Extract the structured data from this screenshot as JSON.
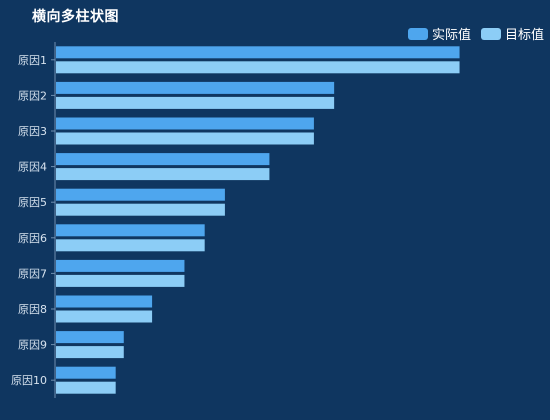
{
  "colors": {
    "background": "#0f3660",
    "series_actual": "#4ea6ee",
    "series_target": "#8ccdf6",
    "axis": "#6f8fb0",
    "tick_label": "#d6e2ee"
  },
  "chart_data": {
    "type": "bar",
    "orientation": "horizontal",
    "title": "横向多柱状图",
    "categories": [
      "原因1",
      "原因2",
      "原因3",
      "原因4",
      "原因5",
      "原因6",
      "原因7",
      "原因8",
      "原因9",
      "原因10"
    ],
    "series": [
      {
        "name": "实际值",
        "color": "#4ea6ee",
        "values": [
          100,
          69,
          64,
          53,
          42,
          37,
          32,
          24,
          17,
          15
        ]
      },
      {
        "name": "目标值",
        "color": "#8ccdf6",
        "values": [
          100,
          69,
          64,
          53,
          42,
          37,
          32,
          24,
          17,
          15
        ]
      }
    ],
    "xlim": [
      0,
      110
    ],
    "grid": false,
    "legend_position": "top-right"
  }
}
